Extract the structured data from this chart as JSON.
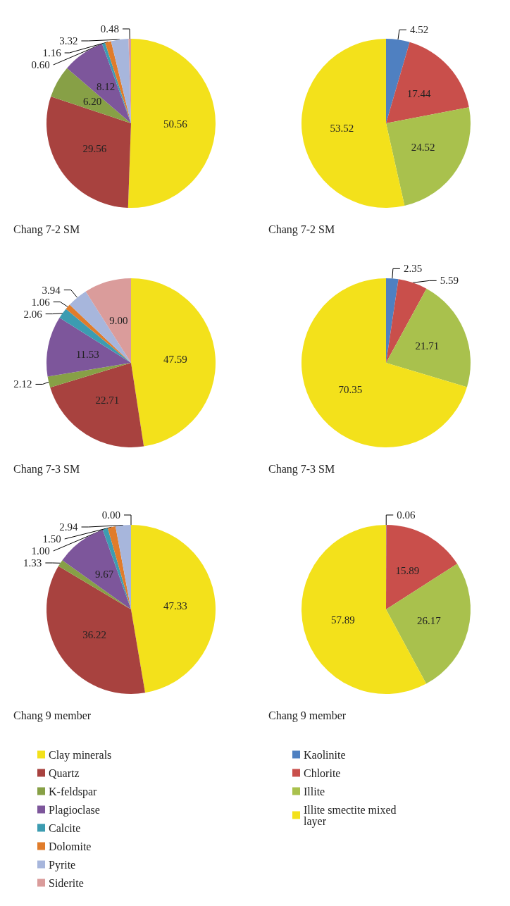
{
  "chart_data": [
    {
      "type": "pie",
      "title": "Chang 7-2 SM",
      "categories": [
        null,
        null,
        null,
        null,
        null,
        null,
        null,
        null
      ],
      "values": [
        50.56,
        29.56,
        6.2,
        8.12,
        0.6,
        1.16,
        3.32,
        0.48
      ],
      "value_labels": [
        "50.56",
        "29.56",
        "6.20",
        "8.12",
        "0.60",
        "1.16",
        "3.32",
        "0.48"
      ],
      "colors": [
        "#f3e11b",
        "#a8423f",
        "#87a046",
        "#7d569b",
        "#3c9cb1",
        "#e07c2b",
        "#a7b6dc",
        "#da9c9b"
      ]
    },
    {
      "type": "pie",
      "title": "Chang 7-2 SM",
      "categories": [
        null,
        null,
        null,
        null
      ],
      "values": [
        4.52,
        17.44,
        24.52,
        53.52
      ],
      "value_labels": [
        "4.52",
        "17.44",
        "24.52",
        "53.52"
      ],
      "colors": [
        "#4f80c1",
        "#c94f4b",
        "#a9c14d",
        "#f3e11b"
      ]
    },
    {
      "type": "pie",
      "title": "Chang 7-3 SM",
      "categories": [
        null,
        null,
        null,
        null,
        null,
        null,
        null,
        null
      ],
      "values": [
        47.59,
        22.71,
        2.12,
        11.53,
        2.06,
        1.06,
        3.94,
        9.0
      ],
      "value_labels": [
        "47.59",
        "22.71",
        "2.12",
        "11.53",
        "2.06",
        "1.06",
        "3.94",
        "9.00"
      ],
      "colors": [
        "#f3e11b",
        "#a8423f",
        "#87a046",
        "#7d569b",
        "#3c9cb1",
        "#e07c2b",
        "#a7b6dc",
        "#da9c9b"
      ]
    },
    {
      "type": "pie",
      "title": "Chang 7-3 SM",
      "categories": [
        null,
        null,
        null,
        null
      ],
      "values": [
        2.35,
        5.59,
        21.71,
        70.35
      ],
      "value_labels": [
        "2.35",
        "5.59",
        "21.71",
        "70.35"
      ],
      "colors": [
        "#4f80c1",
        "#c94f4b",
        "#a9c14d",
        "#f3e11b"
      ]
    },
    {
      "type": "pie",
      "title": "Chang 9 member",
      "categories": [
        "Clay minerals",
        "Quartz",
        "K-feldspar",
        "Plagioclase",
        "Calcite",
        "Dolomite",
        "Pyrite",
        "Siderite"
      ],
      "values": [
        47.33,
        36.22,
        1.33,
        9.67,
        1.0,
        1.5,
        2.94,
        0.0
      ],
      "value_labels": [
        "47.33",
        "36.22",
        "1.33",
        "9.67",
        "1.00",
        "1.50",
        "2.94",
        "0.00"
      ],
      "colors": [
        "#f3e11b",
        "#a8423f",
        "#87a046",
        "#7d569b",
        "#3c9cb1",
        "#e07c2b",
        "#a7b6dc",
        "#da9c9b"
      ],
      "legend": "bottom"
    },
    {
      "type": "pie",
      "title": "Chang 9 member",
      "categories": [
        "Kaolinite",
        "Chlorite",
        "Illite",
        "Illite smectite mixed layer"
      ],
      "values": [
        0.06,
        15.89,
        26.17,
        57.89
      ],
      "value_labels": [
        "0.06",
        "15.89",
        "26.17",
        "57.89"
      ],
      "colors": [
        "#4f80c1",
        "#c94f4b",
        "#a9c14d",
        "#f3e11b"
      ],
      "legend": "bottom"
    }
  ]
}
